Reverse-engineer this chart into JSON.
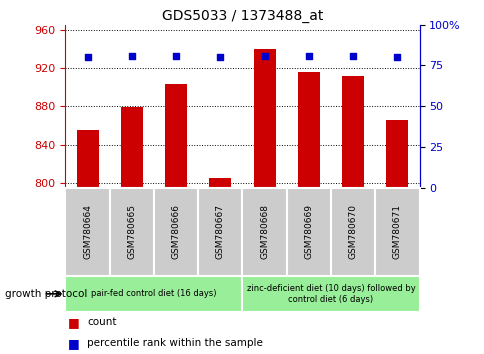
{
  "title": "GDS5033 / 1373488_at",
  "samples": [
    "GSM780664",
    "GSM780665",
    "GSM780666",
    "GSM780667",
    "GSM780668",
    "GSM780669",
    "GSM780670",
    "GSM780671"
  ],
  "count_values": [
    855,
    879,
    903,
    805,
    940,
    916,
    912,
    866
  ],
  "percentile_values": [
    80,
    81,
    81,
    80,
    81,
    81,
    81,
    80
  ],
  "ylim_left": [
    795,
    965
  ],
  "ylim_right": [
    0,
    100
  ],
  "yticks_left": [
    800,
    840,
    880,
    920,
    960
  ],
  "yticks_right": [
    0,
    25,
    50,
    75,
    100
  ],
  "bar_color": "#cc0000",
  "dot_color": "#0000cc",
  "bar_width": 0.5,
  "group1_label": "pair-fed control diet (16 days)",
  "group2_label": "zinc-deficient diet (10 days) followed by\ncontrol diet (6 days)",
  "group1_color": "#99ee99",
  "group2_color": "#99ee99",
  "sample_bg_color": "#cccccc",
  "protocol_label": "growth protocol",
  "legend_count_label": "count",
  "legend_percentile_label": "percentile rank within the sample",
  "tick_color_left": "#cc0000",
  "tick_color_right": "#0000cc",
  "bg_plot": "#ffffff",
  "right_ytick_labels": [
    "0",
    "25",
    "50",
    "75",
    "100%"
  ]
}
